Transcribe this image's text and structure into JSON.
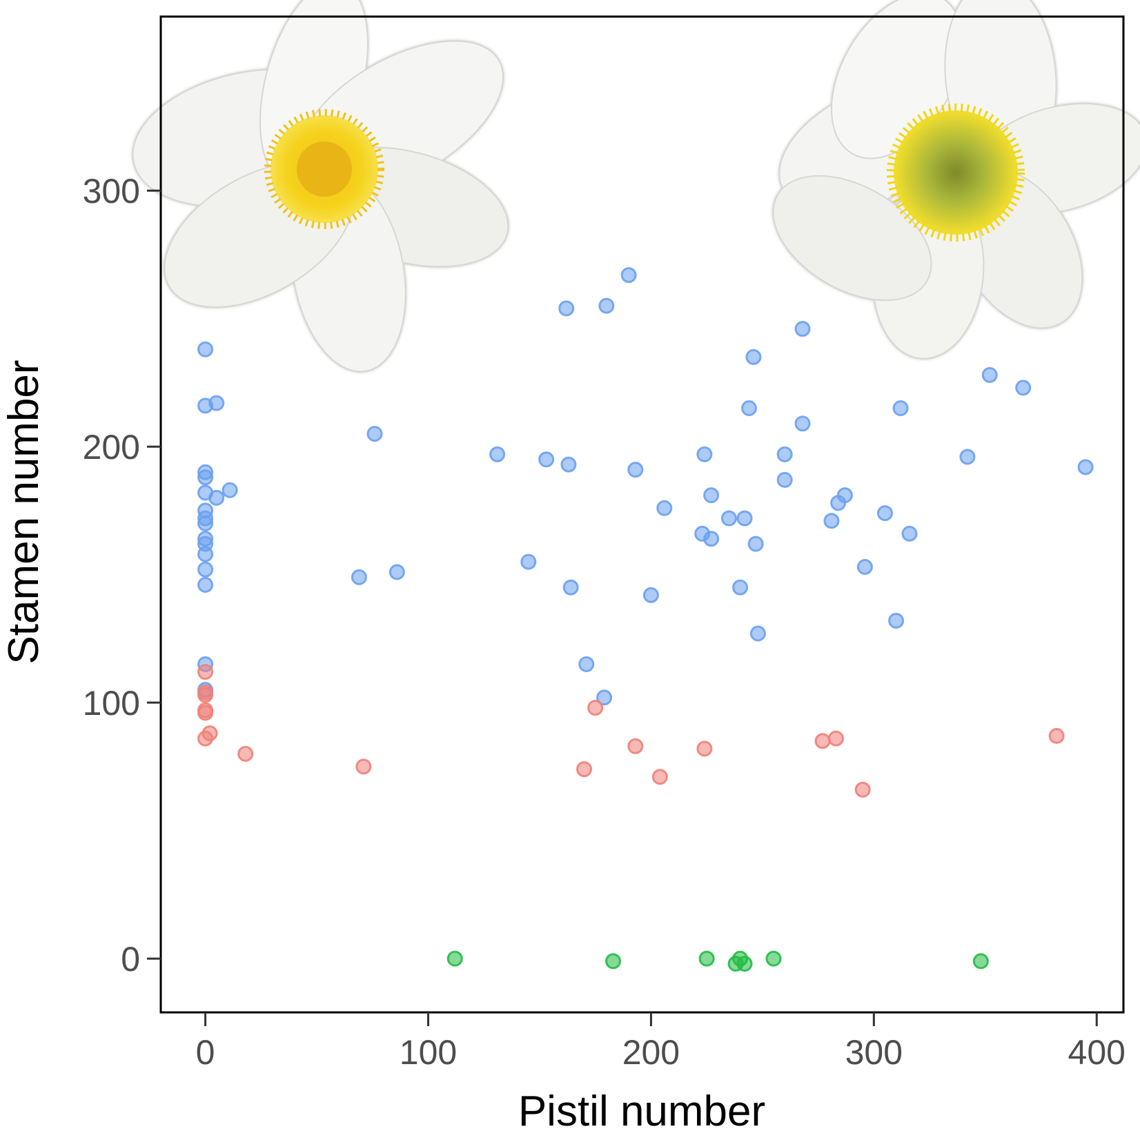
{
  "chart_data": {
    "type": "scatter",
    "title": "",
    "xlabel": "Pistil number",
    "ylabel": "Stamen number",
    "xlim": [
      -20,
      412
    ],
    "ylim": [
      -21,
      368
    ],
    "x_ticks": [
      0,
      100,
      200,
      300,
      400
    ],
    "y_ticks": [
      0,
      100,
      200,
      300
    ],
    "grid": false,
    "legend": "none",
    "series": [
      {
        "color": "#6aa0f0",
        "points": [
          [
            0,
            238
          ],
          [
            0,
            216
          ],
          [
            5,
            217
          ],
          [
            0,
            190
          ],
          [
            0,
            188
          ],
          [
            0,
            182
          ],
          [
            5,
            180
          ],
          [
            11,
            183
          ],
          [
            0,
            175
          ],
          [
            0,
            172
          ],
          [
            0,
            170
          ],
          [
            0,
            164
          ],
          [
            0,
            162
          ],
          [
            0,
            158
          ],
          [
            0,
            152
          ],
          [
            0,
            146
          ],
          [
            0,
            115
          ],
          [
            0,
            105
          ],
          [
            69,
            149
          ],
          [
            76,
            205
          ],
          [
            86,
            151
          ],
          [
            131,
            197
          ],
          [
            145,
            155
          ],
          [
            153,
            195
          ],
          [
            162,
            254
          ],
          [
            163,
            193
          ],
          [
            164,
            145
          ],
          [
            171,
            115
          ],
          [
            179,
            102
          ],
          [
            180,
            255
          ],
          [
            190,
            267
          ],
          [
            193,
            191
          ],
          [
            200,
            142
          ],
          [
            206,
            176
          ],
          [
            223,
            166
          ],
          [
            224,
            197
          ],
          [
            227,
            181
          ],
          [
            227,
            164
          ],
          [
            235,
            172
          ],
          [
            240,
            145
          ],
          [
            242,
            172
          ],
          [
            244,
            215
          ],
          [
            246,
            235
          ],
          [
            247,
            162
          ],
          [
            248,
            127
          ],
          [
            260,
            197
          ],
          [
            260,
            187
          ],
          [
            268,
            246
          ],
          [
            268,
            209
          ],
          [
            281,
            171
          ],
          [
            284,
            178
          ],
          [
            287,
            181
          ],
          [
            296,
            153
          ],
          [
            305,
            174
          ],
          [
            310,
            132
          ],
          [
            312,
            215
          ],
          [
            316,
            166
          ],
          [
            342,
            196
          ],
          [
            352,
            228
          ],
          [
            367,
            223
          ],
          [
            395,
            192
          ]
        ]
      },
      {
        "color": "#f08078",
        "points": [
          [
            0,
            112
          ],
          [
            0,
            104
          ],
          [
            0,
            103
          ],
          [
            0,
            97
          ],
          [
            0,
            96
          ],
          [
            0,
            86
          ],
          [
            2,
            88
          ],
          [
            18,
            80
          ],
          [
            71,
            75
          ],
          [
            170,
            74
          ],
          [
            175,
            98
          ],
          [
            193,
            83
          ],
          [
            204,
            71
          ],
          [
            224,
            82
          ],
          [
            277,
            85
          ],
          [
            283,
            86
          ],
          [
            295,
            66
          ],
          [
            382,
            87
          ]
        ]
      },
      {
        "color": "#22bb44",
        "points": [
          [
            112,
            0
          ],
          [
            183,
            -1
          ],
          [
            225,
            0
          ],
          [
            238,
            -2
          ],
          [
            240,
            0
          ],
          [
            242,
            -2
          ],
          [
            255,
            0
          ],
          [
            348,
            -1
          ]
        ]
      }
    ]
  },
  "illustrations": {
    "left": "white-flower-yellow-stamens-icon",
    "right": "white-flower-green-pistil-center-icon"
  }
}
